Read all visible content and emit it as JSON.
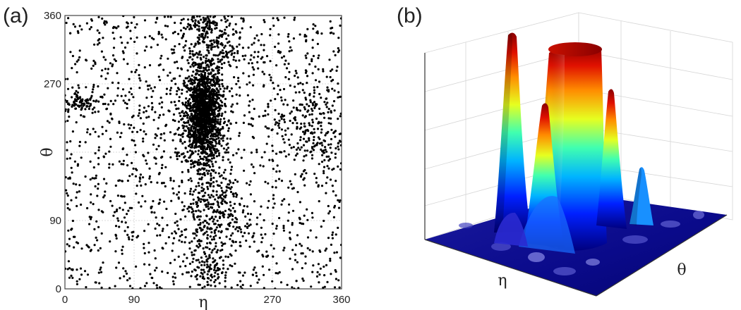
{
  "panels": {
    "a": {
      "label": "(a)"
    },
    "b": {
      "label": "(b)"
    }
  },
  "chart_data": [
    {
      "type": "scatter",
      "panel": "(a)",
      "xlabel": "η",
      "ylabel": "θ",
      "xlim": [
        0,
        360
      ],
      "ylim": [
        0,
        360
      ],
      "xticks": [
        0,
        90,
        180,
        270,
        360
      ],
      "yticks": [
        0,
        90,
        180,
        270,
        360
      ],
      "xtick_labels": [
        "0",
        "90",
        "",
        "270",
        "360"
      ],
      "ytick_labels": [
        "0",
        "90",
        "",
        "270",
        "360"
      ],
      "grid": true,
      "marker_color": "#000000",
      "point_density": [
        {
          "name": "main cluster",
          "center": [
            180,
            230
          ],
          "spread": [
            12,
            30
          ],
          "approx_points": 1400
        },
        {
          "name": "upper plume",
          "center": [
            190,
            320
          ],
          "spread": [
            20,
            30
          ],
          "approx_points": 250
        },
        {
          "name": "top cap",
          "center": [
            178,
            350
          ],
          "spread": [
            10,
            8
          ],
          "approx_points": 60
        },
        {
          "name": "left band",
          "center": [
            20,
            245
          ],
          "spread": [
            14,
            7
          ],
          "approx_points": 90
        },
        {
          "name": "lower tail",
          "center": [
            190,
            110
          ],
          "spread": [
            18,
            45
          ],
          "approx_points": 350
        },
        {
          "name": "bottom band",
          "center": [
            185,
            20
          ],
          "spread": [
            12,
            15
          ],
          "approx_points": 60
        },
        {
          "name": "right cluster",
          "center": [
            320,
            215
          ],
          "spread": [
            25,
            30
          ],
          "approx_points": 200
        },
        {
          "name": "background",
          "center": [
            180,
            180
          ],
          "spread": [
            180,
            180
          ],
          "approx_points": 1500
        }
      ]
    },
    {
      "type": "surface",
      "panel": "(b)",
      "xlabel": "η",
      "ylabel": "θ",
      "colormap": [
        "#00008f",
        "#0050ff",
        "#00c8ff",
        "#60ff90",
        "#ffe600",
        "#ff5a00",
        "#b40000"
      ],
      "peaks": [
        {
          "name": "tall narrow peak",
          "height": 0.95
        },
        {
          "name": "plateau",
          "height": 0.88
        },
        {
          "name": "side peak left",
          "height": 0.55
        },
        {
          "name": "side peak right",
          "height": 0.52
        },
        {
          "name": "small peak",
          "height": 0.28
        }
      ]
    }
  ]
}
